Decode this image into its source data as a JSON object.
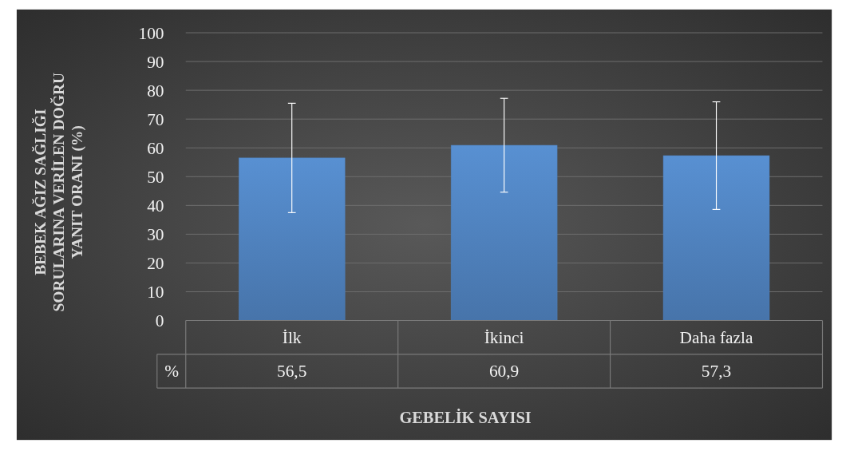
{
  "chart_data": {
    "type": "bar",
    "xlabel": "GEBELİK SAYISI",
    "ylabel": "BEBEK AĞIZ SAĞLIĞI SORULARINA VERİLEN DOĞRU YANIT ORANI (%)",
    "categories": [
      "İlk",
      "İkinci",
      "Daha fazla"
    ],
    "series": [
      {
        "name": "%",
        "color": "#4f81bd",
        "values": [
          56.5,
          60.9,
          57.3
        ],
        "value_labels": [
          "56,5",
          "60,9",
          "57,3"
        ],
        "errors": [
          19,
          16.3,
          18.7
        ]
      }
    ],
    "ylim": [
      0,
      100
    ],
    "yticks": [
      0,
      10,
      20,
      30,
      40,
      50,
      60,
      70,
      80,
      90,
      100
    ],
    "grid": "y"
  }
}
